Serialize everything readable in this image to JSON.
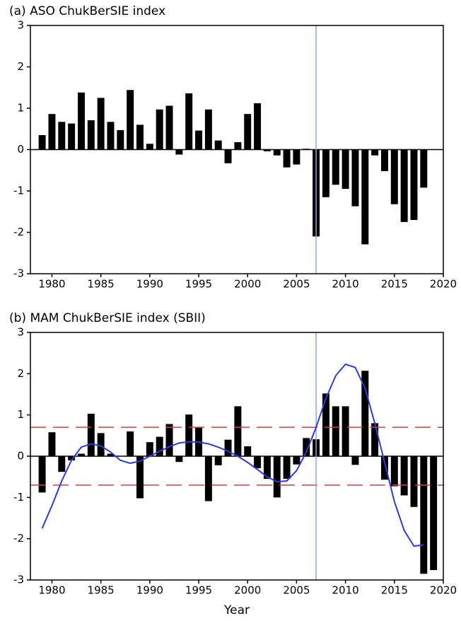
{
  "chart_data": [
    {
      "type": "bar",
      "title": "(a) ASO ChukBerSIE index",
      "x": [
        1979,
        1980,
        1981,
        1982,
        1983,
        1984,
        1985,
        1986,
        1987,
        1988,
        1989,
        1990,
        1991,
        1992,
        1993,
        1994,
        1995,
        1996,
        1997,
        1998,
        1999,
        2000,
        2001,
        2002,
        2003,
        2004,
        2005,
        2006,
        2007,
        2008,
        2009,
        2010,
        2011,
        2012,
        2013,
        2014,
        2015,
        2016,
        2017,
        2018
      ],
      "values": [
        0.35,
        0.86,
        0.67,
        0.63,
        1.38,
        0.71,
        1.25,
        0.67,
        0.47,
        1.44,
        0.6,
        0.14,
        0.97,
        1.06,
        -0.12,
        1.36,
        0.46,
        0.97,
        0.22,
        -0.33,
        0.18,
        0.86,
        1.12,
        -0.04,
        -0.14,
        -0.43,
        -0.36,
        0.02,
        -2.1,
        -1.15,
        -0.85,
        -0.95,
        -1.37,
        -2.29,
        -0.14,
        -0.52,
        -1.32,
        -1.75,
        -1.7,
        -0.92
      ],
      "color": "#000000",
      "vline": {
        "value": 2007,
        "color": "#8fa0ee"
      },
      "xlim": [
        1977.8,
        2020
      ],
      "xticks": [
        1980,
        1985,
        1990,
        1995,
        2000,
        2005,
        2010,
        2015,
        2020
      ],
      "ylim": [
        -3,
        3
      ],
      "yticks": [
        -3,
        -2,
        -1,
        0,
        1,
        2,
        3
      ]
    },
    {
      "type": "bar",
      "title": "(b) MAM ChukBerSIE index (SBII)",
      "xlabel": "Year",
      "x": [
        1979,
        1980,
        1981,
        1982,
        1983,
        1984,
        1985,
        1986,
        1987,
        1988,
        1989,
        1990,
        1991,
        1992,
        1993,
        1994,
        1995,
        1996,
        1997,
        1998,
        1999,
        2000,
        2001,
        2002,
        2003,
        2004,
        2005,
        2006,
        2007,
        2008,
        2009,
        2010,
        2011,
        2012,
        2013,
        2014,
        2015,
        2016,
        2017,
        2018,
        2019
      ],
      "values": [
        -0.88,
        0.58,
        -0.38,
        -0.1,
        0.06,
        1.03,
        0.56,
        0.06,
        0,
        0.6,
        -1.02,
        0.34,
        0.47,
        0.78,
        -0.14,
        1.01,
        0.71,
        -1.09,
        -0.22,
        0.4,
        1.21,
        0.24,
        -0.29,
        -0.55,
        -1.0,
        -0.55,
        -0.2,
        0.44,
        0.41,
        1.52,
        1.21,
        1.21,
        -0.21,
        2.07,
        0.8,
        -0.57,
        -0.73,
        -0.95,
        -1.23,
        -2.85,
        -2.76
      ],
      "color": "#000000",
      "line": {
        "x": [
          1979,
          1980,
          1981,
          1982,
          1983,
          1984,
          1985,
          1986,
          1987,
          1988,
          1989,
          1990,
          1991,
          1992,
          1993,
          1994,
          1995,
          1996,
          1997,
          1998,
          1999,
          2000,
          2001,
          2002,
          2003,
          2004,
          2005,
          2006,
          2007,
          2008,
          2009,
          2010,
          2011,
          2012,
          2013,
          2014,
          2015,
          2016,
          2017,
          2018
        ],
        "values": [
          -1.75,
          -1.2,
          -0.6,
          -0.1,
          0.22,
          0.3,
          0.25,
          0.1,
          -0.1,
          -0.17,
          -0.12,
          0.0,
          0.12,
          0.23,
          0.32,
          0.35,
          0.34,
          0.3,
          0.22,
          0.12,
          0.0,
          -0.15,
          -0.32,
          -0.5,
          -0.62,
          -0.6,
          -0.35,
          0.1,
          0.7,
          1.4,
          1.95,
          2.23,
          2.15,
          1.65,
          0.8,
          -0.15,
          -1.1,
          -1.8,
          -2.18,
          -2.15
        ],
        "color": "#2a3be0"
      },
      "hlines": {
        "values": [
          0.7,
          -0.7
        ],
        "color": "#e03a3a"
      },
      "vline": {
        "value": 2007,
        "color": "#8fa0ee"
      },
      "xlim": [
        1977.8,
        2020
      ],
      "xticks": [
        1980,
        1985,
        1990,
        1995,
        2000,
        2005,
        2010,
        2015,
        2020
      ],
      "ylim": [
        -3,
        3
      ],
      "yticks": [
        -3,
        -2,
        -1,
        0,
        1,
        2,
        3
      ]
    }
  ]
}
